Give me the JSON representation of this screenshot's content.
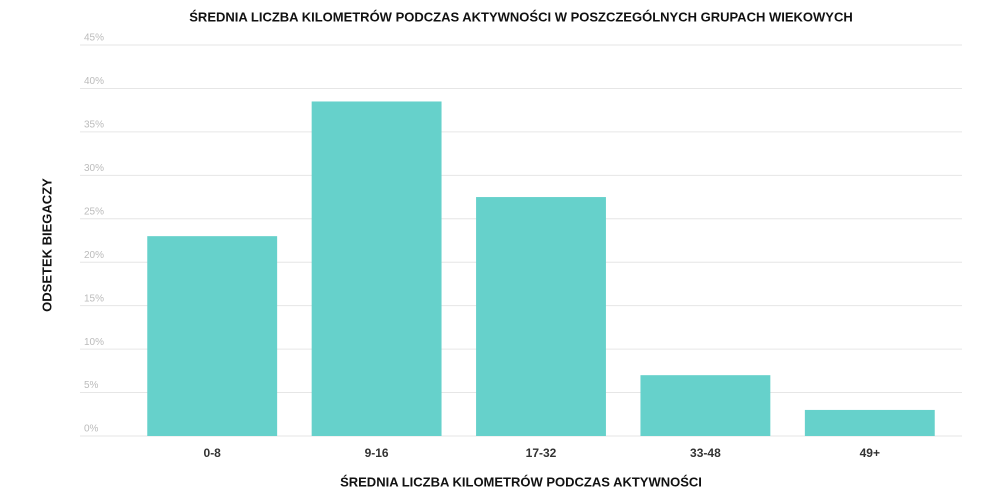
{
  "chart_data": {
    "type": "bar",
    "title": "ŚREDNIA LICZBA KILOMETRÓW PODCZAS AKTYWNOŚCI W POSZCZEGÓLNYCH GRUPACH WIEKOWYCH",
    "x_label": "ŚREDNIA LICZBA KILOMETRÓW PODCZAS AKTYWNOŚCI",
    "y_label": "ODSETEK BIEGACZY",
    "categories": [
      "0-8",
      "9-16",
      "17-32",
      "33-48",
      "49+"
    ],
    "values": [
      23,
      38.5,
      27.5,
      7,
      3
    ],
    "color": "#66d1cb",
    "ylim": [
      0,
      45
    ],
    "yticks": [
      {
        "value": 0,
        "label": "0%"
      },
      {
        "value": 5,
        "label": "5%"
      },
      {
        "value": 10,
        "label": "10%"
      },
      {
        "value": 15,
        "label": "15%"
      },
      {
        "value": 20,
        "label": "20%"
      },
      {
        "value": 25,
        "label": "25%"
      },
      {
        "value": 30,
        "label": "30%"
      },
      {
        "value": 35,
        "label": "35%"
      },
      {
        "value": 40,
        "label": "40%"
      },
      {
        "value": 45,
        "label": "45%"
      }
    ],
    "grid": true
  }
}
